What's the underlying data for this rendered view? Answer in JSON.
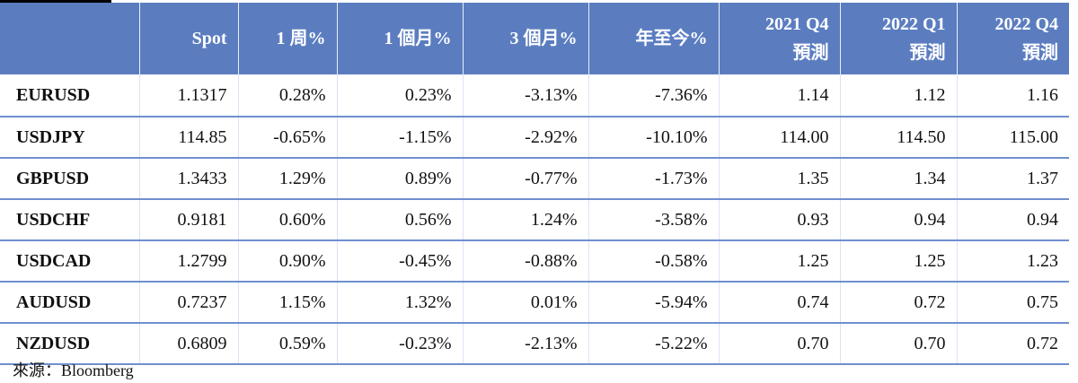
{
  "headers": [
    {
      "l1": "",
      "l2": ""
    },
    {
      "l1": "Spot",
      "l2": ""
    },
    {
      "l1": "1 周%",
      "l2": ""
    },
    {
      "l1": "1 個月%",
      "l2": ""
    },
    {
      "l1": "3 個月%",
      "l2": ""
    },
    {
      "l1": "年至今%",
      "l2": ""
    },
    {
      "l1": "2021 Q4",
      "l2": "預測"
    },
    {
      "l1": "2022 Q1",
      "l2": "預測"
    },
    {
      "l1": "2022 Q4",
      "l2": "預測"
    }
  ],
  "rows": [
    [
      "EURUSD",
      "1.1317",
      "0.28%",
      "0.23%",
      "-3.13%",
      "-7.36%",
      "1.14",
      "1.12",
      "1.16"
    ],
    [
      "USDJPY",
      "114.85",
      "-0.65%",
      "-1.15%",
      "-2.92%",
      "-10.10%",
      "114.00",
      "114.50",
      "115.00"
    ],
    [
      "GBPUSD",
      "1.3433",
      "1.29%",
      "0.89%",
      "-0.77%",
      "-1.73%",
      "1.35",
      "1.34",
      "1.37"
    ],
    [
      "USDCHF",
      "0.9181",
      "0.60%",
      "0.56%",
      "1.24%",
      "-3.58%",
      "0.93",
      "0.94",
      "0.94"
    ],
    [
      "USDCAD",
      "1.2799",
      "0.90%",
      "-0.45%",
      "-0.88%",
      "-0.58%",
      "1.25",
      "1.25",
      "1.23"
    ],
    [
      "AUDUSD",
      "0.7237",
      "1.15%",
      "1.32%",
      "0.01%",
      "-5.94%",
      "0.74",
      "0.72",
      "0.75"
    ],
    [
      "NZDUSD",
      "0.6809",
      "0.59%",
      "-0.23%",
      "-2.13%",
      "-5.22%",
      "0.70",
      "0.70",
      "0.72"
    ]
  ],
  "source": "來源：Bloomberg",
  "colors": {
    "header_bg": "#5b7dc0",
    "row_border": "#6f8fcf"
  }
}
